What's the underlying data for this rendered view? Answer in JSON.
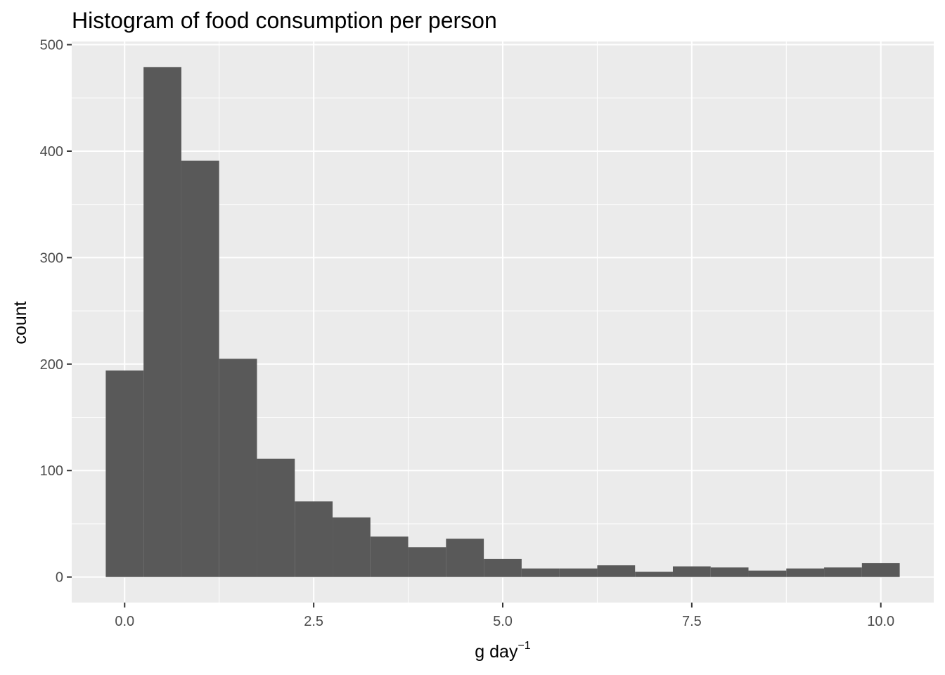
{
  "chart_data": {
    "type": "bar",
    "subtype": "histogram",
    "title": "Histogram of food consumption per person",
    "xlabel": "g day",
    "xlabel_superscript": "−1",
    "ylabel": "count",
    "bin_width": 0.5,
    "bins": [
      {
        "x": 0.0,
        "count": 194
      },
      {
        "x": 0.5,
        "count": 479
      },
      {
        "x": 1.0,
        "count": 391
      },
      {
        "x": 1.5,
        "count": 205
      },
      {
        "x": 2.0,
        "count": 111
      },
      {
        "x": 2.5,
        "count": 71
      },
      {
        "x": 3.0,
        "count": 56
      },
      {
        "x": 3.5,
        "count": 38
      },
      {
        "x": 4.0,
        "count": 28
      },
      {
        "x": 4.5,
        "count": 36
      },
      {
        "x": 5.0,
        "count": 17
      },
      {
        "x": 5.5,
        "count": 8
      },
      {
        "x": 6.0,
        "count": 8
      },
      {
        "x": 6.5,
        "count": 11
      },
      {
        "x": 7.0,
        "count": 5
      },
      {
        "x": 7.5,
        "count": 10
      },
      {
        "x": 8.0,
        "count": 9
      },
      {
        "x": 8.5,
        "count": 6
      },
      {
        "x": 9.0,
        "count": 8
      },
      {
        "x": 9.5,
        "count": 9
      },
      {
        "x": 10.0,
        "count": 13
      }
    ],
    "xlim": [
      -0.7,
      10.7
    ],
    "ylim": [
      -24,
      503
    ],
    "x_ticks": [
      0.0,
      2.5,
      5.0,
      7.5,
      10.0
    ],
    "x_tick_labels": [
      "0.0",
      "2.5",
      "5.0",
      "7.5",
      "10.0"
    ],
    "y_ticks": [
      0,
      100,
      200,
      300,
      400,
      500
    ],
    "y_tick_labels": [
      "0",
      "100",
      "200",
      "300",
      "400",
      "500"
    ],
    "grid": true,
    "colors": {
      "panel_background": "#ebebeb",
      "grid_major": "#ffffff",
      "bar_fill": "#595959",
      "tick_text": "#4d4d4d",
      "tick_mark": "#333333"
    }
  }
}
